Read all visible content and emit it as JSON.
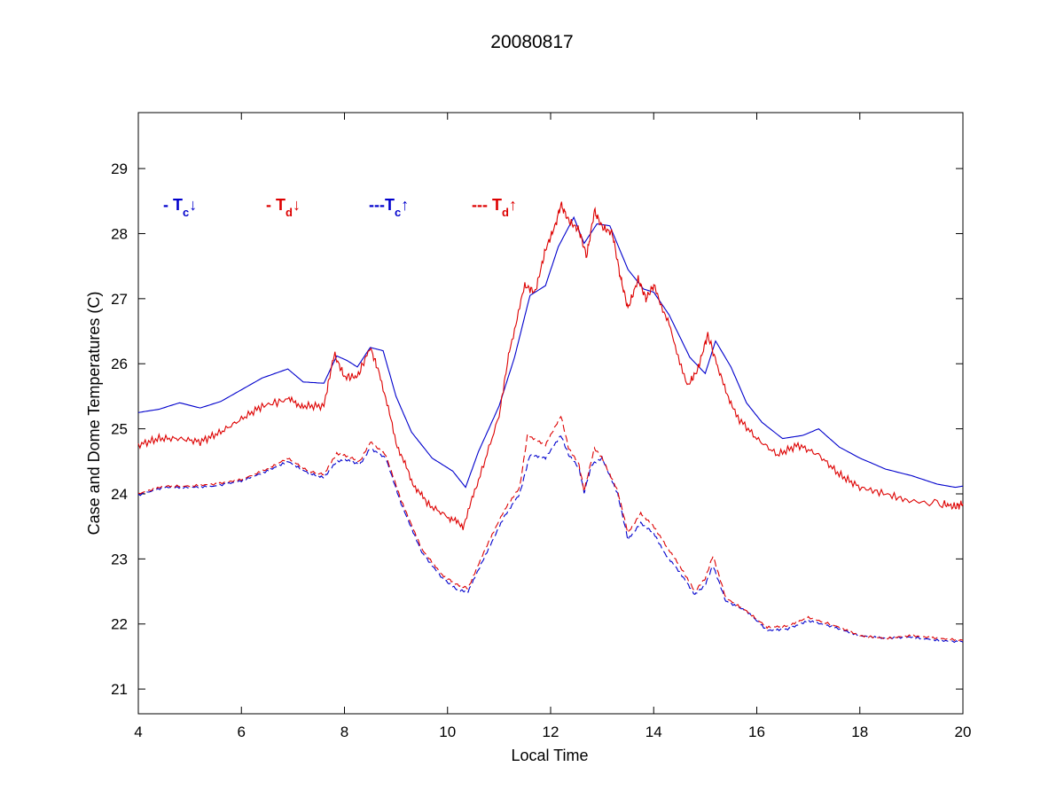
{
  "colors": {
    "blue": "#0000cc",
    "red": "#dd0000",
    "axis": "#000000"
  },
  "chart_data": {
    "type": "line",
    "title": "20080817",
    "xlabel": "Local Time",
    "ylabel": "Case and Dome Temperatures (C)",
    "xlim": [
      4,
      20
    ],
    "ylim": [
      20.62,
      29.86
    ],
    "xticks": [
      4,
      6,
      8,
      10,
      12,
      14,
      16,
      18,
      20
    ],
    "yticks": [
      21,
      22,
      23,
      24,
      25,
      26,
      27,
      28,
      29
    ],
    "grid": false,
    "legend_position": "top-left",
    "legend": [
      {
        "prefix": "- T",
        "sub": "c",
        "arrow": "↓",
        "color": "#0000cc"
      },
      {
        "prefix": "- T",
        "sub": "d",
        "arrow": "↓",
        "color": "#dd0000"
      },
      {
        "prefix": "---T",
        "sub": "c",
        "arrow": "↑",
        "color": "#0000cc"
      },
      {
        "prefix": "--- T",
        "sub": "d",
        "arrow": "↑",
        "color": "#dd0000"
      }
    ],
    "series": [
      {
        "color": "#0000cc",
        "dash": "solid",
        "x": [
          4.0,
          4.4,
          4.8,
          5.2,
          5.6,
          6.0,
          6.4,
          6.9,
          7.2,
          7.6,
          7.85,
          8.05,
          8.25,
          8.5,
          8.75,
          9.0,
          9.3,
          9.7,
          10.1,
          10.35,
          10.6,
          11.0,
          11.3,
          11.6,
          11.9,
          12.15,
          12.45,
          12.65,
          12.9,
          13.15,
          13.5,
          13.8,
          14.0,
          14.3,
          14.7,
          15.0,
          15.2,
          15.5,
          15.8,
          16.1,
          16.5,
          16.9,
          17.2,
          17.6,
          18.0,
          18.5,
          19.0,
          19.5,
          19.85,
          20.0
        ],
        "y": [
          25.25,
          25.3,
          25.4,
          25.32,
          25.42,
          25.6,
          25.78,
          25.92,
          25.72,
          25.7,
          26.12,
          26.05,
          25.95,
          26.25,
          26.2,
          25.5,
          24.95,
          24.55,
          24.35,
          24.1,
          24.65,
          25.35,
          26.1,
          27.05,
          27.2,
          27.8,
          28.25,
          27.85,
          28.15,
          28.12,
          27.45,
          27.15,
          27.1,
          26.75,
          26.1,
          25.85,
          26.35,
          25.95,
          25.4,
          25.1,
          24.85,
          24.9,
          25.0,
          24.72,
          24.55,
          24.38,
          24.28,
          24.15,
          24.1,
          24.12
        ]
      },
      {
        "color": "#dd0000",
        "dash": "solid",
        "x": [
          4.0,
          4.4,
          4.8,
          5.2,
          5.6,
          6.0,
          6.4,
          6.9,
          7.2,
          7.6,
          7.8,
          8.0,
          8.25,
          8.5,
          8.7,
          9.0,
          9.3,
          9.6,
          10.0,
          10.3,
          10.6,
          11.0,
          11.2,
          11.5,
          11.7,
          11.9,
          12.1,
          12.2,
          12.35,
          12.55,
          12.7,
          12.85,
          13.0,
          13.2,
          13.35,
          13.5,
          13.7,
          13.85,
          14.0,
          14.3,
          14.65,
          14.85,
          15.05,
          15.3,
          15.6,
          16.0,
          16.4,
          16.8,
          17.2,
          17.6,
          18.0,
          18.5,
          19.0,
          19.6,
          19.85,
          20.0
        ],
        "y": [
          24.75,
          24.85,
          24.85,
          24.8,
          24.95,
          25.15,
          25.35,
          25.45,
          25.35,
          25.35,
          26.15,
          25.8,
          25.8,
          26.25,
          25.8,
          24.8,
          24.2,
          23.85,
          23.65,
          23.5,
          24.2,
          25.2,
          26.2,
          27.2,
          27.1,
          27.75,
          28.15,
          28.45,
          28.2,
          28.05,
          27.65,
          28.35,
          28.1,
          28.0,
          27.35,
          26.85,
          27.3,
          27.0,
          27.2,
          26.6,
          25.65,
          25.9,
          26.45,
          25.8,
          25.2,
          24.85,
          24.6,
          24.75,
          24.6,
          24.3,
          24.1,
          24.0,
          23.88,
          23.85,
          23.8,
          23.85
        ]
      },
      {
        "color": "#0000cc",
        "dash": "dashed",
        "x": [
          4.0,
          4.5,
          5.0,
          5.5,
          6.0,
          6.5,
          6.9,
          7.3,
          7.6,
          7.85,
          8.05,
          8.3,
          8.5,
          8.8,
          9.1,
          9.5,
          9.9,
          10.2,
          10.4,
          10.7,
          11.1,
          11.4,
          11.6,
          11.9,
          12.2,
          12.35,
          12.55,
          12.65,
          12.8,
          13.0,
          13.3,
          13.5,
          13.75,
          14.0,
          14.2,
          14.5,
          14.8,
          15.0,
          15.15,
          15.4,
          15.8,
          16.2,
          16.6,
          17.0,
          17.5,
          18.0,
          18.5,
          19.0,
          19.5,
          20.0
        ],
        "y": [
          23.98,
          24.1,
          24.1,
          24.12,
          24.2,
          24.35,
          24.5,
          24.32,
          24.25,
          24.5,
          24.52,
          24.45,
          24.7,
          24.55,
          23.85,
          23.1,
          22.7,
          22.52,
          22.5,
          23.0,
          23.65,
          24.0,
          24.6,
          24.55,
          24.9,
          24.6,
          24.4,
          24.02,
          24.45,
          24.55,
          24.0,
          23.3,
          23.55,
          23.4,
          23.1,
          22.8,
          22.45,
          22.6,
          22.9,
          22.35,
          22.2,
          21.9,
          21.92,
          22.05,
          21.95,
          21.82,
          21.78,
          21.8,
          21.75,
          21.72
        ]
      },
      {
        "color": "#dd0000",
        "dash": "dashed",
        "x": [
          4.0,
          4.5,
          5.0,
          5.5,
          6.0,
          6.5,
          6.9,
          7.3,
          7.6,
          7.85,
          8.05,
          8.3,
          8.5,
          8.8,
          9.1,
          9.5,
          9.9,
          10.2,
          10.4,
          10.7,
          11.1,
          11.4,
          11.55,
          11.9,
          12.2,
          12.35,
          12.55,
          12.65,
          12.85,
          13.0,
          13.3,
          13.5,
          13.75,
          14.0,
          14.2,
          14.5,
          14.8,
          15.0,
          15.15,
          15.4,
          15.8,
          16.2,
          16.6,
          17.0,
          17.5,
          18.0,
          18.5,
          19.0,
          19.5,
          20.0
        ],
        "y": [
          24.0,
          24.12,
          24.12,
          24.15,
          24.22,
          24.38,
          24.55,
          24.35,
          24.3,
          24.62,
          24.58,
          24.5,
          24.8,
          24.6,
          23.9,
          23.15,
          22.75,
          22.6,
          22.55,
          23.1,
          23.75,
          24.1,
          24.9,
          24.75,
          25.2,
          24.7,
          24.45,
          24.05,
          24.7,
          24.55,
          24.05,
          23.4,
          23.7,
          23.5,
          23.25,
          22.9,
          22.5,
          22.7,
          23.05,
          22.4,
          22.2,
          21.95,
          21.97,
          22.1,
          21.98,
          21.82,
          21.78,
          21.82,
          21.78,
          21.75
        ]
      }
    ]
  }
}
